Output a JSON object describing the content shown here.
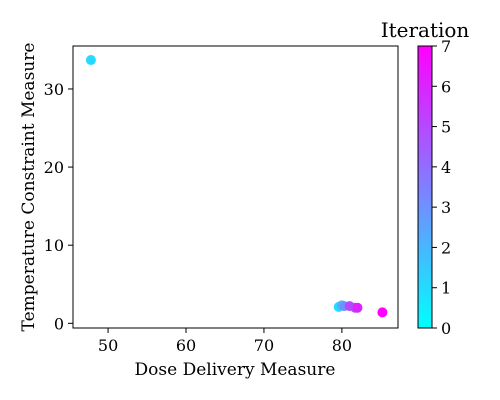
{
  "chart_data": {
    "type": "scatter",
    "xlabel": "Dose Delivery Measure",
    "ylabel": "Temperature Constraint Measure",
    "xlim": [
      45.5,
      87.2
    ],
    "ylim": [
      -0.6,
      35.5
    ],
    "x_ticks": [
      50,
      60,
      70,
      80
    ],
    "y_ticks": [
      0,
      10,
      20,
      30
    ],
    "grid": false,
    "colorbar": {
      "title": "Iteration",
      "min": 0,
      "max": 7,
      "ticks": [
        0,
        1,
        2,
        3,
        4,
        5,
        6,
        7
      ],
      "colormap": "cool",
      "color_min": "#00ffff",
      "color_max": "#ff00ff"
    },
    "points": [
      {
        "x": 47.8,
        "y": 33.7,
        "iteration": 1
      },
      {
        "x": 79.6,
        "y": 2.1,
        "iteration": 1
      },
      {
        "x": 80.0,
        "y": 2.3,
        "iteration": 2
      },
      {
        "x": 80.3,
        "y": 2.2,
        "iteration": 3
      },
      {
        "x": 81.0,
        "y": 2.2,
        "iteration": 5
      },
      {
        "x": 81.7,
        "y": 2.0,
        "iteration": 5
      },
      {
        "x": 82.0,
        "y": 2.0,
        "iteration": 6
      },
      {
        "x": 85.2,
        "y": 1.4,
        "iteration": 7
      }
    ]
  }
}
